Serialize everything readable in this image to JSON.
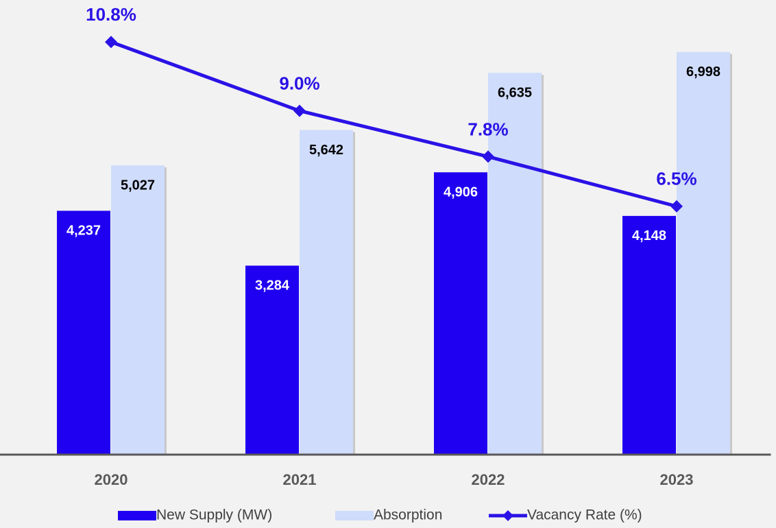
{
  "chart_data": {
    "type": "bar-line",
    "categories": [
      "2020",
      "2021",
      "2022",
      "2023"
    ],
    "series": [
      {
        "name": "New Supply (MW)",
        "type": "bar",
        "color": "#2000f0",
        "values": [
          4237,
          3284,
          4906,
          4148
        ],
        "value_labels": [
          "4,237",
          "3,284",
          "4,906",
          "4,148"
        ]
      },
      {
        "name": "Absorption",
        "type": "bar",
        "color": "#cfdcfb",
        "values": [
          5027,
          5642,
          6635,
          6998
        ],
        "value_labels": [
          "5,027",
          "5,642",
          "6,635",
          "6,998"
        ]
      },
      {
        "name": "Vacancy Rate (%)",
        "type": "line",
        "axis": "y2",
        "color": "#2a12e6",
        "values": [
          10.8,
          9.0,
          7.8,
          6.5
        ],
        "value_labels": [
          "10.8%",
          "9.0%",
          "7.8%",
          "6.5%"
        ]
      }
    ],
    "ylim": [
      0,
      7900
    ],
    "y2lim": [
      0,
      11.9
    ],
    "legend": "bottom"
  }
}
